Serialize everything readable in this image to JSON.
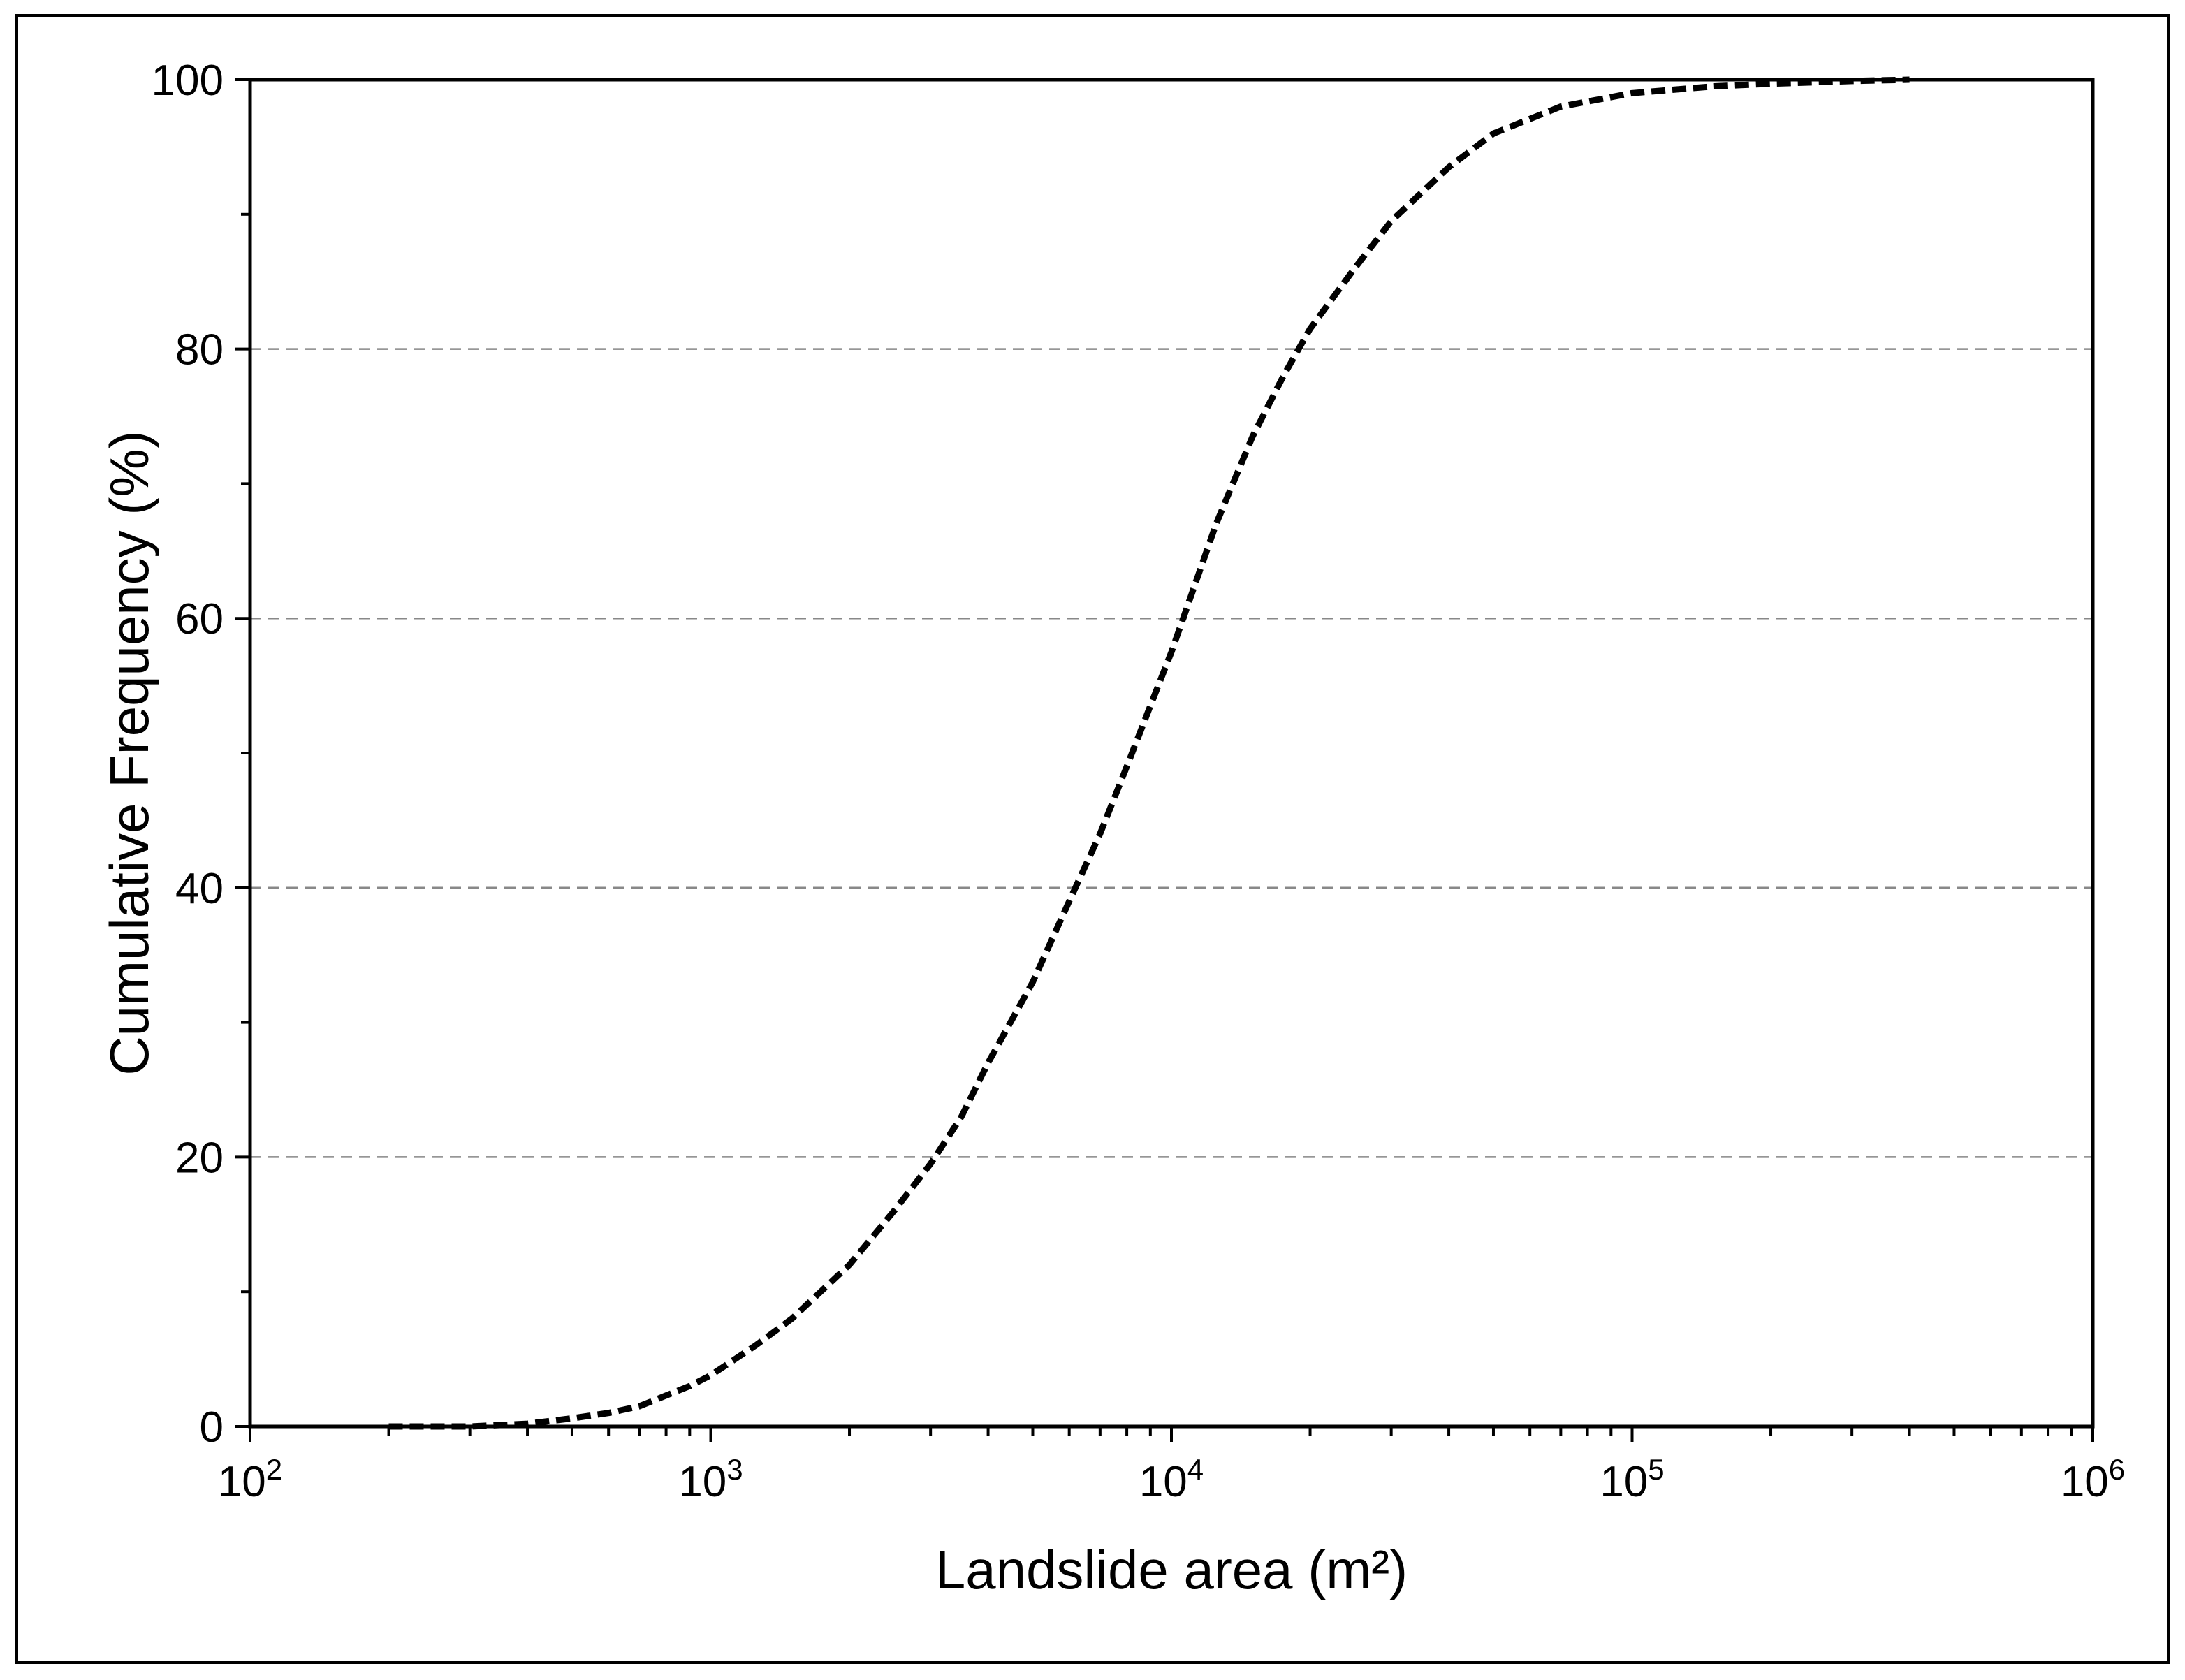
{
  "chart_data": {
    "type": "line",
    "title": "",
    "xlabel": "Landslide area (m²)",
    "ylabel": "Cumulative Frequency (%)",
    "x_scale": "log",
    "xlim": [
      100,
      1000000
    ],
    "ylim": [
      0,
      100
    ],
    "x_ticks": [
      {
        "base": "10",
        "exp": "2",
        "value": 100
      },
      {
        "base": "10",
        "exp": "3",
        "value": 1000
      },
      {
        "base": "10",
        "exp": "4",
        "value": 10000
      },
      {
        "base": "10",
        "exp": "5",
        "value": 100000
      },
      {
        "base": "10",
        "exp": "6",
        "value": 1000000
      }
    ],
    "y_ticks": [
      "0",
      "20",
      "40",
      "60",
      "80",
      "100"
    ],
    "grid": "horizontal dashed at 20, 40, 60, 80",
    "line_style": "dashed",
    "line_color": "#000000",
    "grid_color": "#888888",
    "series": [
      {
        "x": [
          200,
          300,
          400,
          500,
          600,
          700,
          800,
          900,
          1000,
          1250,
          1500,
          2000,
          2500,
          3000,
          3500,
          4000,
          5000,
          6000,
          7000,
          8000,
          9000,
          10000,
          12500,
          15000,
          17500,
          20000,
          25000,
          30000,
          40000,
          50000,
          70000,
          100000,
          150000,
          200000,
          300000,
          400000
        ],
        "y": [
          0,
          0,
          0.2,
          0.6,
          1.0,
          1.5,
          2.3,
          3.0,
          3.8,
          6.0,
          8.0,
          12.0,
          16.0,
          19.5,
          23.0,
          27.0,
          33.0,
          39.0,
          44.0,
          49.0,
          53.5,
          57.5,
          67.0,
          73.5,
          78.0,
          81.5,
          86.0,
          89.5,
          93.5,
          96.0,
          98.0,
          99.0,
          99.5,
          99.7,
          99.9,
          100
        ]
      }
    ]
  }
}
